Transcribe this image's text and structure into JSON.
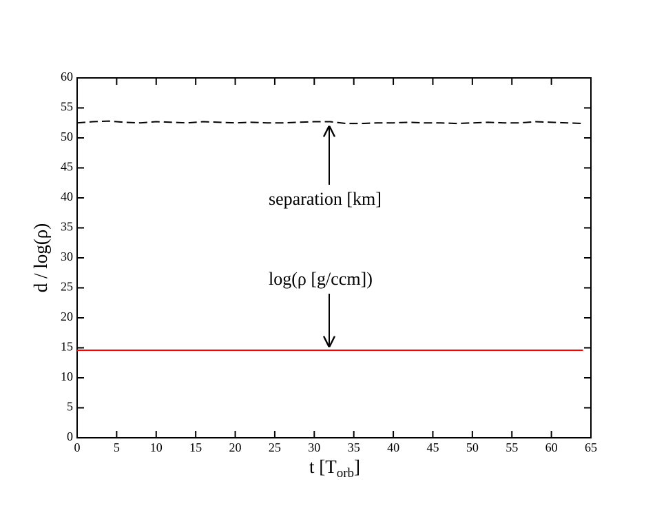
{
  "chart_data": {
    "type": "line",
    "xlabel_parts": [
      "t [T",
      "orb",
      "]"
    ],
    "ylabel": "d / log(ρ)",
    "x": [
      0,
      2,
      4,
      6,
      8,
      10,
      12,
      14,
      16,
      18,
      20,
      22,
      24,
      26,
      28,
      30,
      32,
      34,
      36,
      38,
      40,
      42,
      44,
      46,
      48,
      50,
      52,
      54,
      56,
      58,
      60,
      62,
      64
    ],
    "series": [
      {
        "name": "separation [km]",
        "color": "#000000",
        "dash": true,
        "values": [
          52.5,
          52.7,
          52.8,
          52.6,
          52.5,
          52.7,
          52.6,
          52.5,
          52.7,
          52.6,
          52.5,
          52.6,
          52.5,
          52.5,
          52.6,
          52.7,
          52.7,
          52.4,
          52.4,
          52.5,
          52.5,
          52.6,
          52.5,
          52.5,
          52.4,
          52.5,
          52.6,
          52.5,
          52.5,
          52.7,
          52.6,
          52.5,
          52.4
        ]
      },
      {
        "name": "log(ρ [g/ccm])",
        "color": "#ff0000",
        "dash": false,
        "values": [
          14.6,
          14.6,
          14.6,
          14.6,
          14.6,
          14.6,
          14.6,
          14.6,
          14.6,
          14.6,
          14.6,
          14.6,
          14.6,
          14.6,
          14.6,
          14.6,
          14.6,
          14.6,
          14.6,
          14.6,
          14.6,
          14.6,
          14.6,
          14.6,
          14.6,
          14.6,
          14.6,
          14.6,
          14.6,
          14.6,
          14.6,
          14.6,
          14.6
        ]
      }
    ],
    "xlim": [
      0,
      65
    ],
    "xticks": [
      0,
      5,
      10,
      15,
      20,
      25,
      30,
      35,
      40,
      45,
      50,
      55,
      60,
      65
    ],
    "ylim": [
      0,
      60
    ],
    "yticks": [
      0,
      5,
      10,
      15,
      20,
      25,
      30,
      35,
      40,
      45,
      50,
      55,
      60
    ]
  }
}
